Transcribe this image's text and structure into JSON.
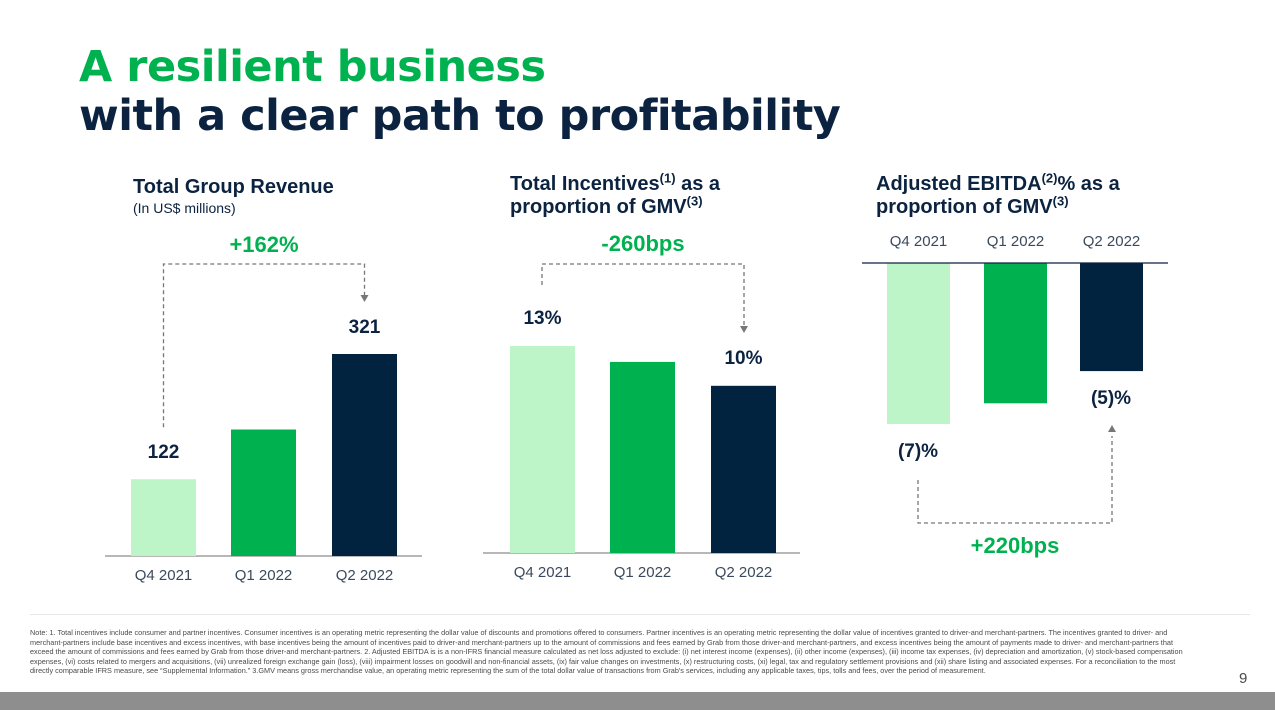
{
  "title": {
    "line1": "A resilient business",
    "line2": "with a clear path to profitability"
  },
  "colors": {
    "light_green": "#bdf5c8",
    "green": "#00b14f",
    "navy": "#012340"
  },
  "charts": {
    "revenue": {
      "title": "Total Group Revenue",
      "subtitle": "(In US$ millions)"
    },
    "incentives": {
      "title_a": "Total Incentives",
      "sup_a": "(1)",
      "title_b": " as a",
      "title_c": "proportion of GMV",
      "sup_c": "(3)"
    },
    "ebitda": {
      "title_a": "Adjusted EBITDA",
      "sup_a": "(2)",
      "title_b": "% as a",
      "title_c": "proportion of GMV",
      "sup_c": "(3)"
    }
  },
  "chart_data": [
    {
      "type": "bar",
      "title": "Total Group Revenue",
      "subtitle": "(In US$ millions)",
      "categories": [
        "Q4 2021",
        "Q1 2022",
        "Q2 2022"
      ],
      "values": [
        122,
        201,
        321
      ],
      "value_labels": [
        "122",
        "",
        "321"
      ],
      "change_label": "+162%",
      "ylim": [
        0,
        321
      ]
    },
    {
      "type": "bar",
      "title": "Total Incentives as a proportion of GMV",
      "categories": [
        "Q4 2021",
        "Q1 2022",
        "Q2 2022"
      ],
      "values": [
        13,
        12,
        10.5
      ],
      "value_labels": [
        "13%",
        "",
        "10%"
      ],
      "change_label": "-260bps",
      "ylim": [
        0,
        13
      ]
    },
    {
      "type": "bar",
      "title": "Adjusted EBITDA% as a proportion of GMV",
      "categories": [
        "Q4 2021",
        "Q1 2022",
        "Q2 2022"
      ],
      "values": [
        -7,
        -6.1,
        -4.7
      ],
      "value_labels": [
        "(7)%",
        "",
        "(5)%"
      ],
      "change_label": "+220bps",
      "ylim": [
        -7,
        0
      ]
    }
  ],
  "footnote": "Note: 1. Total incentives include consumer and partner incentives. Consumer incentives is an operating metric representing the dollar value of discounts and promotions offered to consumers. Partner incentives is an operating metric representing the dollar value of incentives granted to driver-and merchant-partners. The incentives granted to driver- and merchant-partners include base incentives and excess incentives, with base incentives being the amount of incentives paid to driver-and merchant-partners up to the amount of commissions and fees earned by Grab from those driver-and merchant-partners, and excess incentives being the amount of payments made to driver- and merchant-partners that exceed the amount of commissions and fees earned by Grab from those driver-and merchant-partners. 2. Adjusted EBITDA is is a non-IFRS financial measure calculated as net loss adjusted to exclude: (i) net interest income (expenses), (ii) other income (expenses), (iii) income tax expenses, (iv) depreciation and amortization, (v) stock-based compensation expenses, (vi) costs related to mergers and acquisitions, (vii) unrealized foreign exchange gain (loss), (viii) impairment losses on goodwill and non-financial assets, (ix) fair value changes on investments, (x) restructuring costs, (xi) legal, tax and regulatory settlement provisions and (xii) share listing and associated expenses. For a reconciliation to the most directly comparable IFRS measure, see “Supplemental Information.” 3.GMV means gross merchandise value, an operating metric representing the sum of the total dollar value of transactions from Grab's services, including any applicable taxes, tips, tolls and fees, over the period of measurement.",
  "page_number": "9"
}
